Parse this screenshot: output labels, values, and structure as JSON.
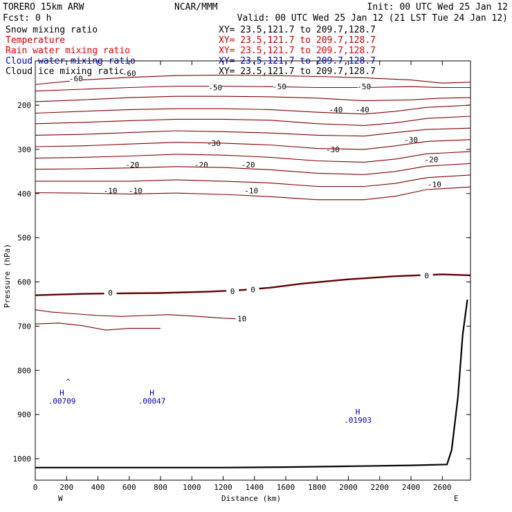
{
  "header": {
    "model": "TORERO  15km ARW",
    "center": "NCAR/MMM",
    "init": "Init: 00 UTC Wed 25 Jan 12",
    "fcst": "Fcst:    0 h",
    "valid": "Valid: 00 UTC Wed 25 Jan 12 (21 LST Tue 24 Jan 12)"
  },
  "fields": [
    {
      "name": "Snow mixing ratio",
      "xy": "XY=  23.5,121.7 to 209.7,128.7",
      "color": "#000000"
    },
    {
      "name": "Temperature",
      "xy": "XY=  23.5,121.7 to 209.7,128.7",
      "color": "#c00000"
    },
    {
      "name": "Rain water mixing ratio",
      "xy": "XY=  23.5,121.7 to 209.7,128.7",
      "color": "#e00000"
    },
    {
      "name": "Cloud water mixing ratio",
      "xy": "XY=  23.5,121.7 to 209.7,128.7",
      "color": "#0000b0"
    },
    {
      "name": "Cloud ice mixing ratio",
      "xy": "XY=  23.5,121.7 to 209.7,128.7",
      "color": "#000000"
    }
  ],
  "chart_data": {
    "type": "cross-section contour",
    "xlabel": "Distance (km)",
    "ylabel": "Pressure (hPa)",
    "xlim": [
      0,
      2780
    ],
    "ylim": [
      1050,
      100
    ],
    "x_ticks": [
      0,
      200,
      400,
      600,
      800,
      1000,
      1200,
      1400,
      1600,
      1800,
      2000,
      2200,
      2400,
      2600
    ],
    "y_ticks": [
      200,
      300,
      400,
      500,
      600,
      700,
      800,
      900,
      1000
    ],
    "end_labels": {
      "left": "W",
      "right": "E"
    },
    "contour_color": "#800000",
    "zero_contour_color": "#600000",
    "temperature_contours": [
      {
        "label": "-60",
        "points": [
          [
            0,
            153
          ],
          [
            300,
            143
          ],
          [
            600,
            137
          ],
          [
            900,
            133
          ],
          [
            1200,
            132
          ],
          [
            1500,
            133
          ],
          [
            1800,
            135
          ],
          [
            2100,
            138
          ],
          [
            2400,
            143
          ],
          [
            2600,
            150
          ],
          [
            2780,
            148
          ]
        ],
        "labels": [
          [
            260,
            140
          ],
          [
            600,
            128
          ]
        ]
      },
      {
        "label": "-50",
        "points": [
          [
            0,
            168
          ],
          [
            300,
            164
          ],
          [
            600,
            160
          ],
          [
            900,
            157
          ],
          [
            1200,
            157
          ],
          [
            1500,
            158
          ],
          [
            1800,
            160
          ],
          [
            2100,
            160
          ],
          [
            2400,
            158
          ],
          [
            2600,
            160
          ],
          [
            2780,
            160
          ]
        ],
        "labels": [
          [
            1150,
            160
          ],
          [
            1560,
            158
          ],
          [
            2100,
            158
          ]
        ]
      },
      {
        "label": "-40",
        "points": [
          [
            0,
            192
          ],
          [
            300,
            188
          ],
          [
            600,
            183
          ],
          [
            900,
            180
          ],
          [
            1200,
            180
          ],
          [
            1500,
            181
          ],
          [
            1800,
            184
          ],
          [
            2100,
            190
          ],
          [
            2400,
            188
          ],
          [
            2600,
            184
          ],
          [
            2780,
            183
          ]
        ],
        "labels": [
          [
            1920,
            210
          ],
          [
            2090,
            210
          ]
        ]
      },
      {
        "label": "",
        "points": [
          [
            0,
            218
          ],
          [
            300,
            214
          ],
          [
            600,
            210
          ],
          [
            900,
            208
          ],
          [
            1200,
            208
          ],
          [
            1500,
            210
          ],
          [
            1800,
            216
          ],
          [
            2100,
            220
          ],
          [
            2300,
            214
          ],
          [
            2500,
            205
          ],
          [
            2780,
            200
          ]
        ],
        "labels": []
      },
      {
        "label": "",
        "points": [
          [
            0,
            242
          ],
          [
            300,
            239
          ],
          [
            600,
            235
          ],
          [
            900,
            232
          ],
          [
            1200,
            232
          ],
          [
            1500,
            234
          ],
          [
            1800,
            242
          ],
          [
            2100,
            246
          ],
          [
            2300,
            240
          ],
          [
            2500,
            230
          ],
          [
            2780,
            225
          ]
        ],
        "labels": []
      },
      {
        "label": "-30",
        "points": [
          [
            0,
            268
          ],
          [
            300,
            266
          ],
          [
            600,
            262
          ],
          [
            900,
            258
          ],
          [
            1200,
            260
          ],
          [
            1500,
            263
          ],
          [
            1800,
            268
          ],
          [
            2100,
            270
          ],
          [
            2300,
            262
          ],
          [
            2500,
            255
          ],
          [
            2780,
            252
          ]
        ],
        "labels": [
          [
            1140,
            286
          ],
          [
            1900,
            300
          ],
          [
            2400,
            278
          ]
        ]
      },
      {
        "label": "",
        "points": [
          [
            0,
            294
          ],
          [
            300,
            292
          ],
          [
            600,
            288
          ],
          [
            900,
            284
          ],
          [
            1200,
            286
          ],
          [
            1500,
            290
          ],
          [
            1800,
            298
          ],
          [
            2100,
            300
          ],
          [
            2300,
            292
          ],
          [
            2500,
            282
          ],
          [
            2780,
            278
          ]
        ],
        "labels": []
      },
      {
        "label": "-20",
        "points": [
          [
            0,
            320
          ],
          [
            300,
            318
          ],
          [
            600,
            315
          ],
          [
            900,
            311
          ],
          [
            1200,
            313
          ],
          [
            1500,
            318
          ],
          [
            1800,
            326
          ],
          [
            2100,
            329
          ],
          [
            2300,
            322
          ],
          [
            2500,
            310
          ],
          [
            2780,
            305
          ]
        ],
        "labels": [
          [
            620,
            335
          ],
          [
            1060,
            335
          ],
          [
            1360,
            335
          ],
          [
            2530,
            323
          ]
        ]
      },
      {
        "label": "",
        "points": [
          [
            0,
            345
          ],
          [
            300,
            344
          ],
          [
            600,
            342
          ],
          [
            900,
            339
          ],
          [
            1200,
            341
          ],
          [
            1500,
            346
          ],
          [
            1800,
            354
          ],
          [
            2100,
            357
          ],
          [
            2300,
            350
          ],
          [
            2500,
            338
          ],
          [
            2780,
            332
          ]
        ],
        "labels": []
      },
      {
        "label": "-10",
        "points": [
          [
            0,
            372
          ],
          [
            300,
            372
          ],
          [
            600,
            372
          ],
          [
            900,
            369
          ],
          [
            1200,
            372
          ],
          [
            1500,
            376
          ],
          [
            1800,
            384
          ],
          [
            2100,
            384
          ],
          [
            2300,
            377
          ],
          [
            2500,
            364
          ],
          [
            2780,
            358
          ]
        ],
        "labels": [
          [
            480,
            393
          ],
          [
            640,
            393
          ],
          [
            1380,
            393
          ],
          [
            2550,
            379
          ]
        ]
      },
      {
        "label": "",
        "points": [
          [
            0,
            398
          ],
          [
            300,
            399
          ],
          [
            600,
            401
          ],
          [
            900,
            399
          ],
          [
            1200,
            402
          ],
          [
            1500,
            407
          ],
          [
            1800,
            414
          ],
          [
            2100,
            414
          ],
          [
            2300,
            406
          ],
          [
            2500,
            391
          ],
          [
            2780,
            385
          ]
        ],
        "labels": []
      },
      {
        "label": "0",
        "points": [
          [
            0,
            630
          ],
          [
            300,
            627
          ],
          [
            500,
            626
          ],
          [
            800,
            625
          ],
          [
            1100,
            622
          ],
          [
            1300,
            619
          ],
          [
            1500,
            613
          ],
          [
            1700,
            604
          ],
          [
            2000,
            594
          ],
          [
            2300,
            587
          ],
          [
            2600,
            583
          ],
          [
            2780,
            585
          ]
        ],
        "labels": [
          [
            480,
            624
          ],
          [
            1260,
            621
          ],
          [
            1390,
            617
          ],
          [
            2500,
            586
          ]
        ],
        "thick": true
      },
      {
        "label": "10",
        "points": [
          [
            0,
            663
          ],
          [
            100,
            668
          ],
          [
            250,
            672
          ],
          [
            400,
            676
          ],
          [
            550,
            678
          ],
          [
            700,
            676
          ],
          [
            850,
            674
          ],
          [
            1000,
            677
          ],
          [
            1200,
            682
          ],
          [
            1350,
            684
          ]
        ],
        "labels": [
          [
            1320,
            683
          ]
        ]
      },
      {
        "label": "",
        "points": [
          [
            0,
            695
          ],
          [
            150,
            693
          ],
          [
            300,
            699
          ],
          [
            450,
            709
          ],
          [
            600,
            705
          ],
          [
            800,
            705
          ]
        ],
        "labels": []
      }
    ],
    "terrain": {
      "color": "#000000",
      "points": [
        [
          0,
          1020
        ],
        [
          400,
          1020
        ],
        [
          800,
          1020
        ],
        [
          1200,
          1020
        ],
        [
          1600,
          1019
        ],
        [
          2000,
          1017
        ],
        [
          2400,
          1015
        ],
        [
          2630,
          1013
        ],
        [
          2660,
          980
        ],
        [
          2700,
          860
        ],
        [
          2730,
          720
        ],
        [
          2760,
          640
        ]
      ]
    },
    "maxima": [
      {
        "symbol": "H",
        "value": ".00709",
        "x": 170,
        "p": 857,
        "color": "#0000b0"
      },
      {
        "symbol": "H",
        "value": ".00047",
        "x": 745,
        "p": 857,
        "color": "#0000b0"
      },
      {
        "symbol": "H",
        "value": ".01903",
        "x": 2060,
        "p": 900,
        "color": "#0000b0"
      }
    ],
    "cloud_marker": {
      "symbol": "^",
      "x": 210,
      "p": 832,
      "color": "#0000b0"
    }
  }
}
